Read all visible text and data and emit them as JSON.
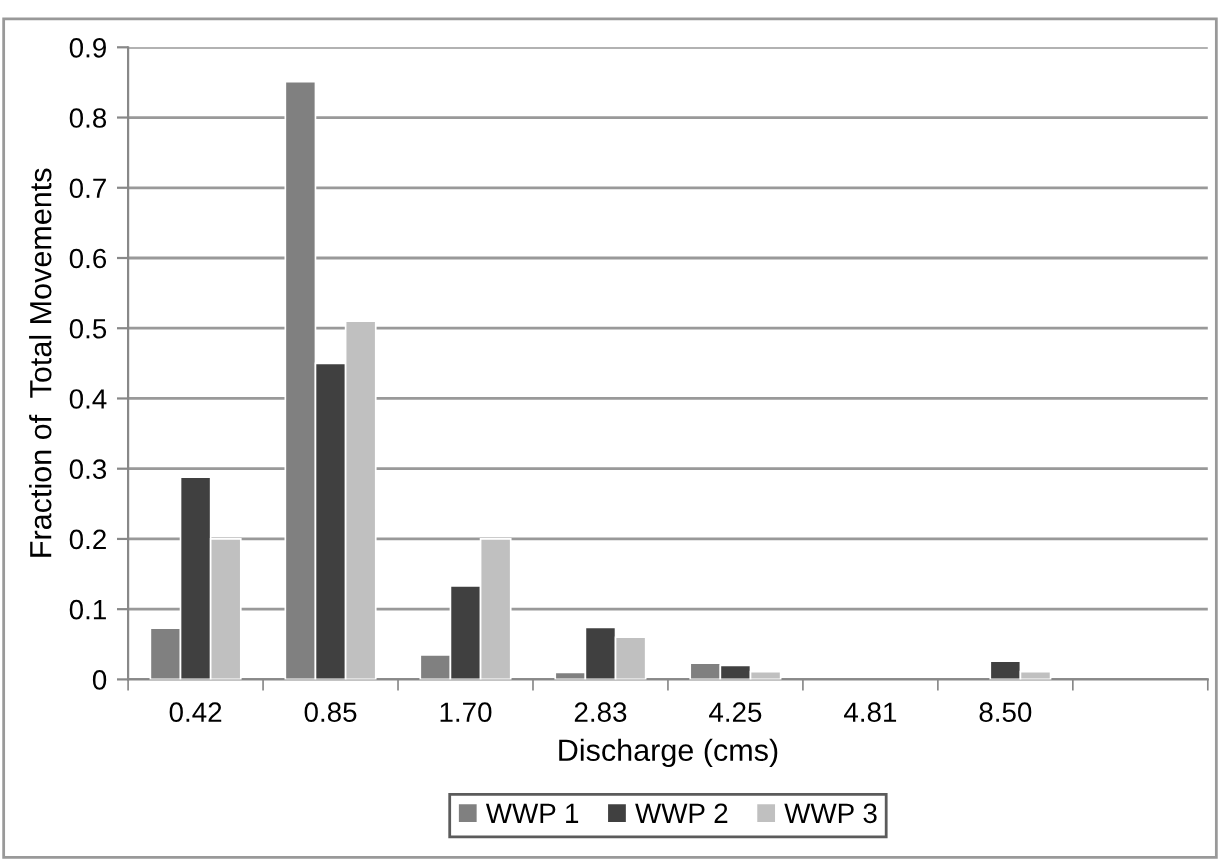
{
  "chart_data": {
    "type": "bar",
    "xlabel": "Discharge (cms)",
    "ylabel": "Fraction of  Total Movements",
    "categories": [
      "0.42",
      "0.85",
      "1.70",
      "2.83",
      "4.25",
      "4.81",
      "8.50",
      null
    ],
    "series": [
      {
        "name": "WWP 1",
        "color": "#808080",
        "values": [
          0.073,
          0.851,
          0.035,
          0.01,
          0.023,
          null,
          null,
          null
        ]
      },
      {
        "name": "WWP 2",
        "color": "#404040",
        "values": [
          0.288,
          0.45,
          0.133,
          0.074,
          0.02,
          null,
          0.026,
          null
        ]
      },
      {
        "name": "WWP 3",
        "color": "#c0c0c0",
        "values": [
          0.2,
          0.51,
          0.2,
          0.06,
          0.011,
          null,
          0.011,
          null
        ]
      }
    ],
    "ylim": [
      0,
      0.9
    ],
    "yticks": [
      0,
      {
        "value": 0.1,
        "label": "0.1"
      },
      {
        "value": 0.2,
        "label": "0.2"
      },
      {
        "value": 0.3,
        "label": "0.3"
      },
      {
        "value": 0.4,
        "label": "0.4"
      },
      {
        "value": 0.5,
        "label": "0.5"
      },
      {
        "value": 0.6,
        "label": "0.6"
      },
      {
        "value": 0.7,
        "label": "0.7"
      },
      {
        "value": 0.8,
        "label": "0.8"
      },
      {
        "value": 0.9,
        "label": "0.9"
      }
    ],
    "grid": "y",
    "legend": "bottom"
  }
}
